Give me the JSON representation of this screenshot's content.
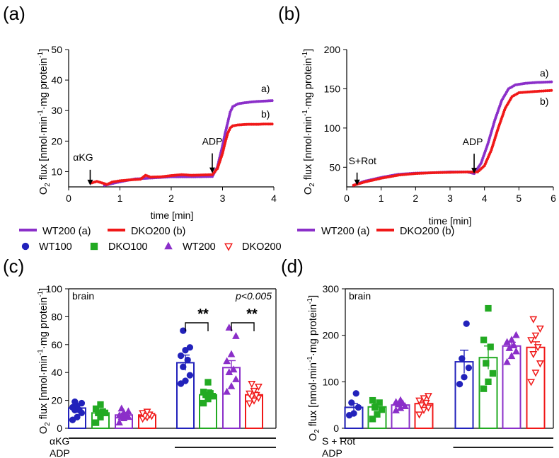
{
  "colors": {
    "wt": "#8b2fc9",
    "dko": "#f01818",
    "wt100": "#2222bb",
    "dko100": "#22aa22",
    "black": "#000000"
  },
  "legends": {
    "top": [
      {
        "label": "WT200 (a)",
        "color": "#8b2fc9"
      },
      {
        "label": "DKO200 (b)",
        "color": "#f01818"
      }
    ],
    "bars": [
      {
        "label": "WT100",
        "color": "#2222bb",
        "marker": "circle"
      },
      {
        "label": "DKO100",
        "color": "#22aa22",
        "marker": "square"
      },
      {
        "label": "WT200",
        "color": "#8b2fc9",
        "marker": "triangle"
      },
      {
        "label": "DKO200",
        "color": "#f01818",
        "marker": "triangle-down"
      }
    ]
  },
  "chart_data": [
    {
      "panel": "(a)",
      "type": "scatter",
      "xlabel": "time [min]",
      "ylabel": "O2 flux [nmol·min-1·mg protein-1]",
      "ylabel_parts": {
        "o2": "O",
        "sub": "2",
        "main": " flux [nmol·min",
        "e1": "-1",
        "mid": "·mg protein",
        "e2": "-1",
        "end": "]"
      },
      "xlim": [
        0,
        4
      ],
      "ylim": [
        5,
        50
      ],
      "xticks": [
        "0",
        "1",
        "2",
        "3",
        "4"
      ],
      "yticks": [
        "10",
        "20",
        "30",
        "40",
        "50"
      ],
      "annotations": [
        {
          "text": "αKG",
          "x": 0.42,
          "y": 5.5
        },
        {
          "text": "ADP",
          "x": 2.8,
          "y": 9.5
        }
      ],
      "series": [
        {
          "name": "WT200 (a)",
          "end_label": "a)",
          "color": "#8b2fc9",
          "x": [
            0.7,
            0.9,
            1.1,
            1.3,
            1.6,
            2.0,
            2.4,
            2.8,
            2.9,
            3.0,
            3.05,
            3.1,
            3.15,
            3.2,
            3.3,
            3.4,
            3.5,
            3.6,
            3.7,
            3.8,
            3.9,
            4.0
          ],
          "y": [
            5.5,
            6.3,
            7.0,
            7.6,
            7.9,
            8.3,
            8.3,
            8.4,
            11.5,
            18.5,
            22.5,
            26.0,
            29.5,
            31.3,
            32.2,
            32.5,
            32.7,
            32.9,
            33.0,
            33.1,
            33.2,
            33.3
          ]
        },
        {
          "name": "DKO200 (b)",
          "end_label": "b)",
          "color": "#f01818",
          "x": [
            0.45,
            0.55,
            0.65,
            0.75,
            0.85,
            1.0,
            1.2,
            1.4,
            1.5,
            1.6,
            1.8,
            2.0,
            2.2,
            2.4,
            2.6,
            2.8,
            2.9,
            3.0,
            3.05,
            3.1,
            3.15,
            3.2,
            3.3,
            3.4,
            3.5,
            3.6,
            3.7,
            3.8,
            3.9,
            4.0
          ],
          "y": [
            6.3,
            6.8,
            6.3,
            5.8,
            6.6,
            7.0,
            7.3,
            7.5,
            8.8,
            8.2,
            8.3,
            8.7,
            9.0,
            8.8,
            8.9,
            9.0,
            11.0,
            16.0,
            19.5,
            22.5,
            24.3,
            25.0,
            25.3,
            25.4,
            25.5,
            25.5,
            25.5,
            25.6,
            25.6,
            25.6
          ]
        }
      ]
    },
    {
      "panel": "(b)",
      "type": "scatter",
      "xlabel": "time [min]",
      "ylabel": "O2 flux [nmol·min-1·mg protein-1]",
      "ylabel_parts": {
        "o2": "O",
        "sub": "2",
        "main": " flux [nmol·min",
        "e1": "-1",
        "mid": "·mg protein",
        "e2": "-1",
        "end": "]"
      },
      "xlim": [
        0,
        6
      ],
      "ylim": [
        25,
        200
      ],
      "xticks": [
        "0",
        "1",
        "2",
        "3",
        "4",
        "5",
        "6"
      ],
      "yticks": [
        "50",
        "100",
        "150",
        "200"
      ],
      "annotations": [
        {
          "text": "S+Rot",
          "x": 0.3,
          "y": 27
        },
        {
          "text": "ADP",
          "x": 3.7,
          "y": 42
        }
      ],
      "series": [
        {
          "name": "WT200 (a)",
          "end_label": "a)",
          "color": "#8b2fc9",
          "x": [
            0.2,
            0.5,
            1.0,
            1.5,
            2.0,
            2.5,
            3.0,
            3.5,
            3.7,
            3.9,
            4.1,
            4.3,
            4.5,
            4.7,
            4.9,
            5.2,
            5.5,
            6.0
          ],
          "y": [
            27,
            32,
            37,
            41,
            42.5,
            43,
            44,
            44,
            42,
            55,
            80,
            110,
            135,
            150,
            155,
            157,
            158,
            159
          ]
        },
        {
          "name": "DKO200 (b)",
          "end_label": "b)",
          "color": "#f01818",
          "x": [
            0.2,
            0.5,
            1.0,
            1.5,
            2.0,
            2.5,
            3.0,
            3.5,
            3.8,
            4.0,
            4.2,
            4.4,
            4.6,
            4.8,
            5.0,
            5.3,
            5.6,
            6.0
          ],
          "y": [
            27,
            31,
            36,
            40,
            42,
            43,
            43.5,
            44,
            44,
            52,
            72,
            100,
            125,
            140,
            145,
            146,
            147,
            148
          ]
        }
      ]
    },
    {
      "panel": "(c)",
      "type": "bar",
      "ylabel": "O2 flux [nmol·min-1·mg protein-1]",
      "ylabel_parts": {
        "o2": "O",
        "sub": "2",
        "main": " flux [nmol·min",
        "e1": "-1",
        "mid": "·mg protein",
        "e2": "-1",
        "end": "]"
      },
      "ylim": [
        0,
        100
      ],
      "yticks": [
        "0",
        "20",
        "40",
        "60",
        "80",
        "100"
      ],
      "inner_label": "brain",
      "p_label": "p<0.005",
      "significance": [
        "**",
        "**"
      ],
      "substrates": [
        "αKG",
        "ADP"
      ],
      "groups": [
        "WT100",
        "DKO100",
        "WT200",
        "DKO200"
      ],
      "series": [
        {
          "name": "αKG",
          "values": [
            14.5,
            11,
            9.5,
            9.5
          ],
          "errors": [
            1.8,
            1.5,
            1.4,
            1.0
          ]
        },
        {
          "name": "αKG + ADP",
          "values": [
            47,
            24,
            43.5,
            24
          ],
          "errors": [
            5.5,
            3.5,
            5.0,
            2.0
          ]
        }
      ]
    },
    {
      "panel": "(d)",
      "type": "bar",
      "ylabel": "O2 flux [nmol·min-1·mg protein-1]",
      "ylabel_parts": {
        "o2": "O",
        "sub": "2",
        "main": " flux [nmol·min",
        "e1": "-1",
        "mid": "·mg protein",
        "e2": "-1",
        "end": "]"
      },
      "ylim": [
        0,
        300
      ],
      "yticks": [
        "0",
        "100",
        "200",
        "300"
      ],
      "inner_label": "brain",
      "substrates": [
        "S + Rot",
        "ADP"
      ],
      "groups": [
        "WT100",
        "DKO100",
        "WT200",
        "DKO200"
      ],
      "series": [
        {
          "name": "S + Rot",
          "values": [
            45,
            46,
            50,
            53
          ],
          "errors": [
            8,
            7,
            3,
            5
          ]
        },
        {
          "name": "S + Rot + ADP",
          "values": [
            143,
            152,
            177,
            174
          ],
          "errors": [
            25,
            25,
            8,
            12
          ]
        }
      ]
    }
  ],
  "bar_points": {
    "c": [
      [
        [
          6,
          8,
          11,
          13,
          13,
          15,
          16,
          18,
          19
        ],
        [
          4,
          8,
          11,
          11,
          12,
          14,
          17
        ],
        [
          4,
          7,
          8,
          8,
          9,
          9,
          11,
          12,
          14
        ],
        [
          7,
          8,
          9,
          9,
          10,
          11,
          12
        ]
      ],
      [
        [
          32,
          34,
          38,
          44,
          49,
          52,
          56,
          58,
          70
        ],
        [
          18,
          21,
          23,
          24,
          25,
          26,
          33
        ],
        [
          26,
          30,
          35,
          40,
          42,
          48,
          53,
          66,
          72
        ],
        [
          18,
          20,
          22,
          23,
          24,
          25,
          27,
          30,
          32
        ]
      ]
    ],
    "d": [
      [
        [
          28,
          32,
          45,
          55,
          75
        ],
        [
          20,
          30,
          40,
          45,
          55,
          60
        ],
        [
          38,
          43,
          47,
          51,
          53,
          56,
          60
        ],
        [
          30,
          40,
          45,
          50,
          55,
          60,
          65,
          70
        ]
      ],
      [
        [
          95,
          110,
          130,
          150,
          225
        ],
        [
          85,
          100,
          118,
          140,
          175,
          190,
          258
        ],
        [
          142,
          155,
          165,
          172,
          178,
          185,
          190,
          200
        ],
        [
          100,
          120,
          140,
          160,
          175,
          190,
          200,
          215,
          235
        ]
      ]
    ]
  }
}
